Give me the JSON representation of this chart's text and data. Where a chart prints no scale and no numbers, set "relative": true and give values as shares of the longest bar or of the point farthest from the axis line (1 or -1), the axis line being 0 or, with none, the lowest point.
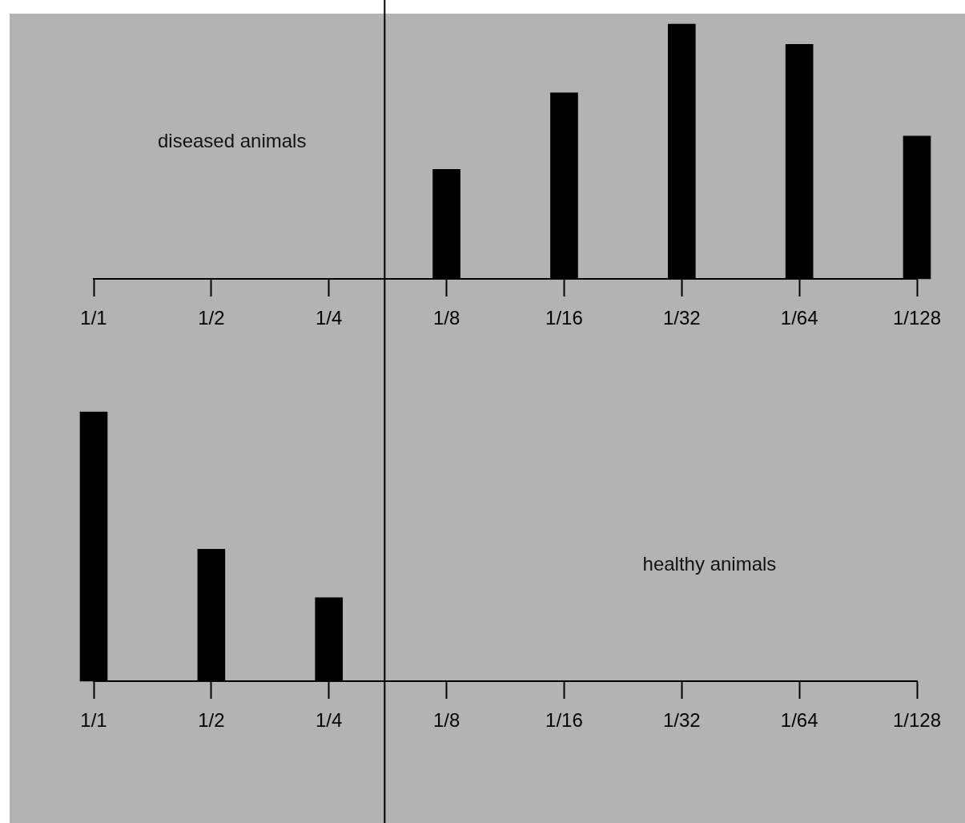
{
  "chart_data": [
    {
      "type": "bar",
      "relative": true,
      "log": "x",
      "x": [
        0.125,
        0.0625,
        0.03125,
        0.015625,
        0.0078125
      ],
      "xlim": [
        1,
        0.0078125
      ],
      "xticks": [
        {
          "value": 1,
          "label": "1/1"
        },
        {
          "value": 0.5,
          "label": "1/2"
        },
        {
          "value": 0.25,
          "label": "1/4"
        },
        {
          "value": 0.125,
          "label": "1/8"
        },
        {
          "value": 0.0625,
          "label": "1/16"
        },
        {
          "value": 0.03125,
          "label": "1/32"
        },
        {
          "value": 0.015625,
          "label": "1/64"
        },
        {
          "value": 0.0078125,
          "label": "1/128"
        }
      ],
      "values": [
        0.43,
        0.73,
        1,
        0.92,
        0.56
      ],
      "color": "#000000",
      "ref_lines": [
        {
          "axis": "x",
          "value": 0.18,
          "color": "#000000"
        }
      ],
      "annotations": [
        "diseased animals"
      ]
    },
    {
      "type": "bar",
      "relative": true,
      "log": "x",
      "x": [
        1,
        0.5,
        0.25
      ],
      "xlim": [
        1,
        0.0078125
      ],
      "xticks": [
        {
          "value": 1,
          "label": "1/1"
        },
        {
          "value": 0.5,
          "label": "1/2"
        },
        {
          "value": 0.25,
          "label": "1/4"
        },
        {
          "value": 0.125,
          "label": "1/8"
        },
        {
          "value": 0.0625,
          "label": "1/16"
        },
        {
          "value": 0.03125,
          "label": "1/32"
        },
        {
          "value": 0.015625,
          "label": "1/64"
        },
        {
          "value": 0.0078125,
          "label": "1/128"
        }
      ],
      "values": [
        1,
        0.49,
        0.31
      ],
      "color": "#000000",
      "ref_lines": [
        {
          "axis": "x",
          "value": 0.18,
          "color": "#000000"
        }
      ],
      "annotations": [
        "healthy animals"
      ]
    }
  ]
}
